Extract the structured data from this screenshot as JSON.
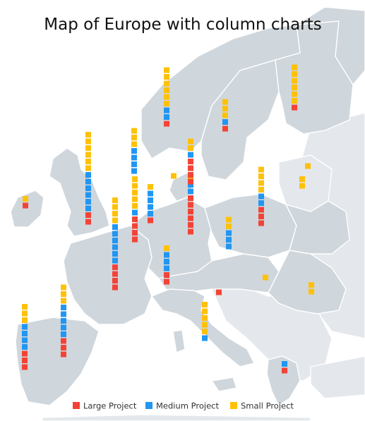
{
  "chart_data": {
    "type": "stacked-square-columns-on-map",
    "title": "Map of Europe with column charts",
    "series": [
      {
        "name": "Large Project",
        "color": "#f44336"
      },
      {
        "name": "Medium Project",
        "color": "#2196f3"
      },
      {
        "name": "Small Project",
        "color": "#ffc107"
      }
    ],
    "legend_position": "bottom",
    "columns": [
      {
        "large": 1,
        "medium": 0,
        "small": 1
      },
      {
        "large": 2,
        "medium": 6,
        "small": 6
      },
      {
        "large": 4,
        "medium": 1,
        "small": 5
      },
      {
        "large": 4,
        "medium": 6,
        "small": 4
      },
      {
        "large": 0,
        "medium": 4,
        "small": 3
      },
      {
        "large": 1,
        "medium": 4,
        "small": 1
      },
      {
        "large": 3,
        "medium": 5,
        "small": 3
      },
      {
        "large": 3,
        "medium": 4,
        "small": 3
      },
      {
        "large": 2,
        "medium": 3,
        "small": 1
      },
      {
        "large": 1,
        "medium": 2,
        "small": 6
      },
      {
        "large": 0,
        "medium": 0,
        "small": 1
      },
      {
        "large": 6,
        "medium": 2,
        "small": 1
      },
      {
        "large": 4,
        "medium": 1,
        "small": 2
      },
      {
        "large": 1,
        "medium": 0,
        "small": 0
      },
      {
        "large": 0,
        "medium": 3,
        "small": 2
      },
      {
        "large": 0,
        "medium": 1,
        "small": 5
      },
      {
        "large": 1,
        "medium": 1,
        "small": 3
      },
      {
        "large": 3,
        "medium": 2,
        "small": 4
      },
      {
        "large": 0,
        "medium": 0,
        "small": 1
      },
      {
        "large": 0,
        "medium": 0,
        "small": 1
      },
      {
        "large": 0,
        "medium": 0,
        "small": 2
      },
      {
        "large": 0,
        "medium": 0,
        "small": 2
      },
      {
        "large": 1,
        "medium": 1,
        "small": 0
      },
      {
        "large": 1,
        "medium": 0,
        "small": 6
      }
    ]
  }
}
